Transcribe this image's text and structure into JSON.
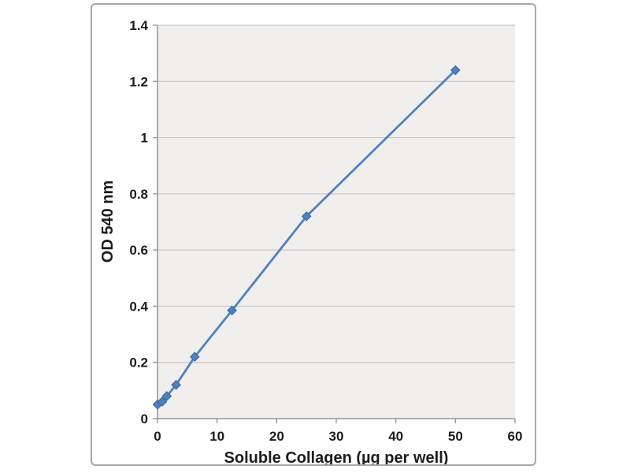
{
  "figure": {
    "background_color": "#ffffff",
    "frame_border_color": "#a9a9a9"
  },
  "chart_data": {
    "type": "line",
    "title": "",
    "xlabel": "Soluble Collagen (µg per well)",
    "ylabel": "OD 540 nm",
    "x": [
      0,
      0.78,
      1.56,
      3.12,
      6.25,
      12.5,
      25,
      50
    ],
    "y": [
      0.05,
      0.06,
      0.08,
      0.12,
      0.22,
      0.385,
      0.72,
      1.24
    ],
    "xlim": [
      0,
      60
    ],
    "ylim": [
      0,
      1.4
    ],
    "xticks": {
      "values": [
        0,
        10,
        20,
        30,
        40,
        50,
        60
      ],
      "labels": [
        "0",
        "10",
        "20",
        "30",
        "40",
        "50",
        "60"
      ]
    },
    "yticks": {
      "values": [
        0,
        0.2,
        0.4,
        0.6,
        0.8,
        1,
        1.2,
        1.4
      ],
      "labels": [
        "0",
        "0.2",
        "0.4",
        "0.6",
        "0.8",
        "1",
        "1.2",
        "1.4"
      ]
    },
    "grid": "horizontal",
    "legend": "none",
    "marker": "diamond",
    "line_color": "#4f81bd",
    "marker_fill": "#4f81bd",
    "marker_stroke": "#38649c",
    "plot_bg": "#f0efee",
    "gridline_color": "#c9c9c9",
    "axis_color": "#999999",
    "text_color": "#1c1c1c"
  }
}
